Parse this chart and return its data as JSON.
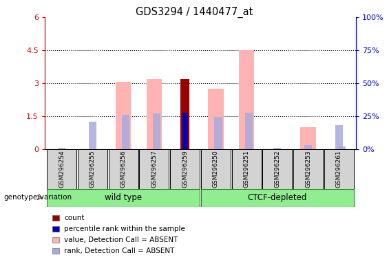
{
  "title": "GDS3294 / 1440477_at",
  "samples": [
    "GSM296254",
    "GSM296255",
    "GSM296256",
    "GSM296257",
    "GSM296259",
    "GSM296250",
    "GSM296251",
    "GSM296252",
    "GSM296253",
    "GSM296261"
  ],
  "value_absent": [
    0.0,
    0.0,
    3.05,
    3.2,
    0.0,
    2.75,
    4.5,
    0.0,
    1.0,
    0.0
  ],
  "rank_absent_stacked": [
    0.0,
    0.0,
    1.55,
    1.62,
    0.0,
    1.48,
    1.65,
    0.0,
    0.0,
    0.13
  ],
  "small_rank_absent": [
    0.07,
    1.25,
    0.0,
    0.0,
    0.0,
    0.0,
    0.0,
    0.05,
    0.2,
    1.1
  ],
  "count_bar": [
    0.0,
    0.0,
    0.0,
    0.0,
    3.2,
    0.0,
    0.0,
    0.0,
    0.0,
    0.0
  ],
  "percentile_rank": [
    0.0,
    0.0,
    0.0,
    0.0,
    1.65,
    0.0,
    0.0,
    0.0,
    0.0,
    0.0
  ],
  "ylim_left": [
    0,
    6
  ],
  "ylim_right": [
    0,
    100
  ],
  "yticks_left": [
    0,
    1.5,
    3.0,
    4.5,
    6.0
  ],
  "ytick_labels_left": [
    "0",
    "1.5",
    "3",
    "4.5",
    "6"
  ],
  "yticks_right": [
    0,
    25,
    50,
    75,
    100
  ],
  "ytick_labels_right": [
    "0%",
    "25%",
    "50%",
    "75%",
    "100%"
  ],
  "left_axis_color": "#cc0000",
  "right_axis_color": "#0000cc",
  "color_value_absent": "#ffb3b3",
  "color_rank_absent": "#aaaadd",
  "color_count": "#990000",
  "color_percentile": "#0000bb",
  "wt_indices": [
    0,
    1,
    2,
    3,
    4
  ],
  "ctcf_indices": [
    5,
    6,
    7,
    8,
    9
  ],
  "group_color": "#90ee90",
  "group_border_color": "#228B22",
  "sample_box_color": "#d3d3d3",
  "background_color": "#ffffff",
  "legend_items": [
    {
      "color": "#990000",
      "label": "count"
    },
    {
      "color": "#0000bb",
      "label": "percentile rank within the sample"
    },
    {
      "color": "#ffb3b3",
      "label": "value, Detection Call = ABSENT"
    },
    {
      "color": "#aaaadd",
      "label": "rank, Detection Call = ABSENT"
    }
  ]
}
